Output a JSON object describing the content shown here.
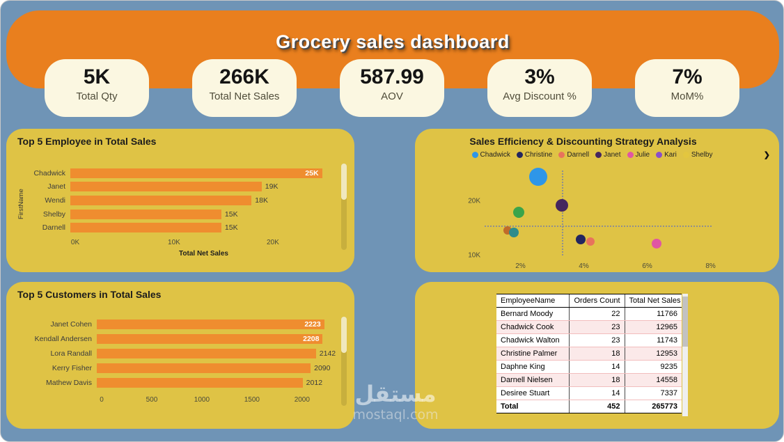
{
  "header": {
    "title": "Grocery sales dashboard"
  },
  "kpis": [
    {
      "value": "5K",
      "label": "Total Qty"
    },
    {
      "value": "266K",
      "label": "Total Net Sales"
    },
    {
      "value": "587.99",
      "label": "AOV"
    },
    {
      "value": "3%",
      "label": "Avg Discount %"
    },
    {
      "value": "7%",
      "label": "MoM%"
    }
  ],
  "colors": {
    "background": "#6F94B6",
    "header": "#E97F1E",
    "card": "#FBF7E1",
    "panel": "#DFC345",
    "bar": "#EF8D2F"
  },
  "watermark": {
    "line1": "مستقل",
    "line2": "mostaql.com"
  },
  "chart_data": [
    {
      "id": "top5_employees",
      "type": "bar",
      "orientation": "horizontal",
      "title": "Top 5 Employee in Total Sales",
      "categories": [
        "Chadwick",
        "Janet",
        "Wendi",
        "Shelby",
        "Darnell"
      ],
      "values": [
        25000,
        19000,
        18000,
        15000,
        15000
      ],
      "value_labels": [
        "25K",
        "19K",
        "18K",
        "15K",
        "15K"
      ],
      "labels_inside": [
        true,
        false,
        false,
        false,
        false
      ],
      "xlabel": "Total Net Sales",
      "ylabel": "FirstName",
      "xlim": [
        0,
        26000
      ],
      "x_ticks": [
        {
          "label": "0K",
          "value": 0
        },
        {
          "label": "10K",
          "value": 10000
        },
        {
          "label": "20K",
          "value": 20000
        }
      ]
    },
    {
      "id": "top5_customers",
      "type": "bar",
      "orientation": "horizontal",
      "title": "Top 5 Customers in Total Sales",
      "categories": [
        "Janet Cohen",
        "Kendall Andersen",
        "Lora Randall",
        "Kerry Fisher",
        "Mathew Davis"
      ],
      "values": [
        2223,
        2208,
        2142,
        2090,
        2012
      ],
      "value_labels": [
        "2223",
        "2208",
        "2142",
        "2090",
        "2012"
      ],
      "labels_inside": [
        true,
        true,
        false,
        false,
        false
      ],
      "xlabel": "",
      "ylabel": "",
      "xlim": [
        0,
        2300
      ],
      "x_ticks": [
        {
          "label": "0",
          "value": 0
        },
        {
          "label": "500",
          "value": 500
        },
        {
          "label": "1000",
          "value": 1000
        },
        {
          "label": "1500",
          "value": 1500
        },
        {
          "label": "2000",
          "value": 2000
        }
      ]
    },
    {
      "id": "sales_efficiency_scatter",
      "type": "scatter",
      "title": "Sales Efficiency & Discounting Strategy Analysis",
      "legend_arrow": "❯",
      "legend": [
        {
          "name": "Chadwick",
          "color": "#2E96E8"
        },
        {
          "name": "Christine",
          "color": "#23265F"
        },
        {
          "name": "Darnell",
          "color": "#E8735C"
        },
        {
          "name": "Janet",
          "color": "#45265E"
        },
        {
          "name": "Julie",
          "color": "#E056A3"
        },
        {
          "name": "Kari",
          "color": "#8A4FC8"
        },
        {
          "name": "Shelby",
          "color": "#E3C63F"
        }
      ],
      "xlim": [
        1.0,
        8.8
      ],
      "ylim": [
        9000,
        26750
      ],
      "x_ticks": [
        {
          "label": "2%",
          "value": 2
        },
        {
          "label": "4%",
          "value": 4
        },
        {
          "label": "6%",
          "value": 6
        },
        {
          "label": "8%",
          "value": 8
        }
      ],
      "y_ticks": [
        {
          "label": "10K",
          "value": 10000
        },
        {
          "label": "20K",
          "value": 20000
        }
      ],
      "avg_lines": {
        "x": 3.3,
        "y": 15600
      },
      "points": [
        {
          "name": "Chadwick",
          "x": 2.55,
          "y": 24500,
          "r": 13,
          "color": "#2E96E8"
        },
        {
          "name": "",
          "x": 1.95,
          "y": 18000,
          "r": 8,
          "color": "#3BA44A"
        },
        {
          "name": "Janet",
          "x": 3.3,
          "y": 19300,
          "r": 9,
          "color": "#45265E"
        },
        {
          "name": "",
          "x": 1.6,
          "y": 14600,
          "r": 6,
          "color": "#C06B2A"
        },
        {
          "name": "",
          "x": 1.8,
          "y": 14250,
          "r": 7,
          "color": "#2E8C8C"
        },
        {
          "name": "Christine",
          "x": 3.9,
          "y": 13000,
          "r": 7,
          "color": "#23265F"
        },
        {
          "name": "Darnell",
          "x": 4.2,
          "y": 12600,
          "r": 6,
          "color": "#E8735C"
        },
        {
          "name": "Julie",
          "x": 6.3,
          "y": 12250,
          "r": 7,
          "color": "#E056A3"
        }
      ]
    },
    {
      "id": "employee_orders_table",
      "type": "table",
      "columns": [
        "EmployeeName",
        "Orders Count",
        "Total Net Sales"
      ],
      "rows": [
        [
          "Bernard Moody",
          "22",
          "11766"
        ],
        [
          "Chadwick Cook",
          "23",
          "12965"
        ],
        [
          "Chadwick Walton",
          "23",
          "11743"
        ],
        [
          "Christine Palmer",
          "18",
          "12953"
        ],
        [
          "Daphne King",
          "14",
          "9235"
        ],
        [
          "Darnell Nielsen",
          "18",
          "14558"
        ],
        [
          "Desiree Stuart",
          "14",
          "7337"
        ]
      ],
      "total_row": [
        "Total",
        "452",
        "265773"
      ]
    }
  ]
}
